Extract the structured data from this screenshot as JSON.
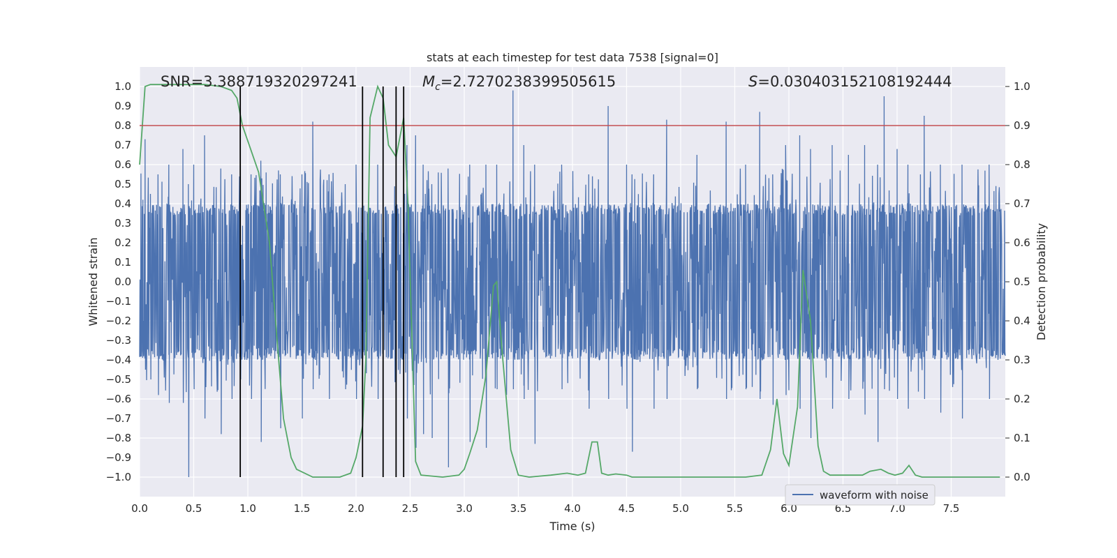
{
  "chart_data": {
    "type": "line",
    "title": "stats at each timestep for test data 7538 [signal=0]",
    "xlabel": "Time (s)",
    "ylabel_left": "Whitened strain",
    "ylabel_right": "Detection probability",
    "xlim": [
      0.0,
      8.0
    ],
    "ylim_left": [
      -1.1,
      1.1
    ],
    "ylim_right": [
      -0.05,
      1.05
    ],
    "x_ticks": [
      "0.0",
      "0.5",
      "1.0",
      "1.5",
      "2.0",
      "2.5",
      "3.0",
      "3.5",
      "4.0",
      "4.5",
      "5.0",
      "5.5",
      "6.0",
      "6.5",
      "7.0",
      "7.5"
    ],
    "y_left_ticks": [
      "1.0",
      "0.9",
      "0.8",
      "0.7",
      "0.6",
      "0.5",
      "0.4",
      "0.3",
      "0.2",
      "0.1",
      "0.0",
      "−0.1",
      "−0.2",
      "−0.3",
      "−0.4",
      "−0.5",
      "−0.6",
      "−0.7",
      "−0.8",
      "−0.9",
      "−1.0"
    ],
    "y_right_ticks": [
      "1.0",
      "0.9",
      "0.8",
      "0.7",
      "0.6",
      "0.5",
      "0.4",
      "0.3",
      "0.2",
      "0.1",
      "0.0"
    ],
    "annotations": {
      "snr": "SNR=3.388719320297241",
      "mc_symbol": "M",
      "mc_sub": "c",
      "mc_value": "=2.7270238399505615",
      "s_symbol": "S",
      "s_value": "=0.030403152108192444"
    },
    "threshold": {
      "axis": "right",
      "value": 0.9,
      "color": "#c44e52"
    },
    "trigger_lines_x": [
      0.93,
      2.06,
      2.25,
      2.37,
      2.44
    ],
    "waveform": {
      "name": "waveform with noise",
      "color": "#4c72b0",
      "core_amplitude": 0.4,
      "spikes": [
        [
          0.03,
          0.42,
          -0.2
        ],
        [
          0.05,
          0.73,
          -0.45
        ],
        [
          0.1,
          0.45,
          -0.5
        ],
        [
          0.17,
          0.55,
          -0.58
        ],
        [
          0.27,
          0.6,
          -0.62
        ],
        [
          0.4,
          0.68,
          -0.62
        ],
        [
          0.45,
          0.5,
          -1.0
        ],
        [
          0.5,
          0.6,
          -0.55
        ],
        [
          0.6,
          0.75,
          -0.7
        ],
        [
          0.75,
          0.58,
          -0.78
        ],
        [
          0.85,
          0.55,
          -0.6
        ],
        [
          0.93,
          0.6,
          -0.5
        ],
        [
          1.03,
          0.55,
          -0.6
        ],
        [
          1.12,
          0.62,
          -0.82
        ],
        [
          1.3,
          0.55,
          -0.75
        ],
        [
          1.5,
          0.55,
          -0.7
        ],
        [
          1.6,
          0.82,
          -0.55
        ],
        [
          1.75,
          0.55,
          -0.6
        ],
        [
          1.9,
          0.5,
          -0.55
        ],
        [
          2.0,
          0.6,
          -0.6
        ],
        [
          2.2,
          0.6,
          -0.6
        ],
        [
          2.47,
          0.7,
          -0.7
        ],
        [
          2.55,
          0.75,
          -0.85
        ],
        [
          2.62,
          0.6,
          -0.78
        ],
        [
          2.7,
          0.5,
          -0.8
        ],
        [
          2.85,
          0.58,
          -0.95
        ],
        [
          3.05,
          0.6,
          -0.82
        ],
        [
          3.2,
          0.6,
          -0.85
        ],
        [
          3.3,
          0.6,
          -0.55
        ],
        [
          3.45,
          0.98,
          -0.55
        ],
        [
          3.55,
          0.7,
          -0.6
        ],
        [
          3.65,
          0.6,
          -0.83
        ],
        [
          3.9,
          0.6,
          -0.55
        ],
        [
          4.15,
          0.55,
          -0.65
        ],
        [
          4.33,
          0.9,
          -0.6
        ],
        [
          4.5,
          0.6,
          -0.65
        ],
        [
          4.55,
          0.55,
          -0.87
        ],
        [
          4.75,
          0.55,
          -0.65
        ],
        [
          4.87,
          0.83,
          -0.6
        ],
        [
          5.15,
          0.65,
          -0.55
        ],
        [
          5.42,
          0.82,
          -0.6
        ],
        [
          5.6,
          0.6,
          -0.55
        ],
        [
          5.73,
          0.87,
          -0.6
        ],
        [
          5.85,
          0.55,
          -0.63
        ],
        [
          5.97,
          0.7,
          -0.58
        ],
        [
          6.1,
          0.75,
          -0.65
        ],
        [
          6.2,
          0.68,
          -0.8
        ],
        [
          6.4,
          0.7,
          -0.65
        ],
        [
          6.55,
          0.65,
          -0.6
        ],
        [
          6.7,
          0.7,
          -0.68
        ],
        [
          6.82,
          0.6,
          -0.82
        ],
        [
          6.88,
          0.95,
          -0.55
        ],
        [
          7.0,
          0.68,
          -0.6
        ],
        [
          7.1,
          0.6,
          -0.65
        ],
        [
          7.25,
          0.85,
          -0.6
        ],
        [
          7.4,
          0.6,
          -0.67
        ],
        [
          7.6,
          0.6,
          -0.7
        ],
        [
          7.85,
          0.6,
          -0.6
        ]
      ]
    },
    "probability": {
      "name": "Detection probability",
      "color": "#55a868",
      "x": [
        0.0,
        0.05,
        0.1,
        0.3,
        0.6,
        0.75,
        0.85,
        0.9,
        0.95,
        1.05,
        1.1,
        1.2,
        1.27,
        1.33,
        1.4,
        1.45,
        1.6,
        1.75,
        1.85,
        1.95,
        2.0,
        2.06,
        2.09,
        2.13,
        2.2,
        2.25,
        2.3,
        2.37,
        2.44,
        2.48,
        2.55,
        2.6,
        2.8,
        2.95,
        3.0,
        3.05,
        3.12,
        3.2,
        3.27,
        3.3,
        3.35,
        3.43,
        3.5,
        3.6,
        3.8,
        3.95,
        4.05,
        4.12,
        4.18,
        4.23,
        4.27,
        4.33,
        4.4,
        4.5,
        4.55,
        4.8,
        5.0,
        5.3,
        5.6,
        5.75,
        5.83,
        5.89,
        5.95,
        6.0,
        6.08,
        6.13,
        6.2,
        6.27,
        6.32,
        6.38,
        6.5,
        6.68,
        6.75,
        6.85,
        6.92,
        6.98,
        7.05,
        7.11,
        7.17,
        7.23,
        7.35,
        7.6,
        7.95
      ],
      "y": [
        0.8,
        1.0,
        1.005,
        1.005,
        1.005,
        1.0,
        0.99,
        0.97,
        0.9,
        0.82,
        0.78,
        0.6,
        0.35,
        0.15,
        0.05,
        0.02,
        0.0,
        0.0,
        0.0,
        0.01,
        0.05,
        0.13,
        0.3,
        0.92,
        1.0,
        0.97,
        0.85,
        0.82,
        0.92,
        0.7,
        0.04,
        0.005,
        0.0,
        0.005,
        0.02,
        0.06,
        0.12,
        0.26,
        0.49,
        0.5,
        0.32,
        0.07,
        0.005,
        0.0,
        0.005,
        0.01,
        0.005,
        0.01,
        0.09,
        0.09,
        0.01,
        0.005,
        0.008,
        0.005,
        0.0,
        0.0,
        0.0,
        0.0,
        0.0,
        0.005,
        0.07,
        0.2,
        0.06,
        0.03,
        0.18,
        0.53,
        0.4,
        0.08,
        0.015,
        0.005,
        0.005,
        0.005,
        0.015,
        0.02,
        0.01,
        0.005,
        0.01,
        0.03,
        0.005,
        0.0,
        0.0,
        0.0,
        0.0
      ]
    },
    "legend": {
      "entries": [
        "waveform with noise"
      ],
      "position": "lower-right"
    }
  }
}
